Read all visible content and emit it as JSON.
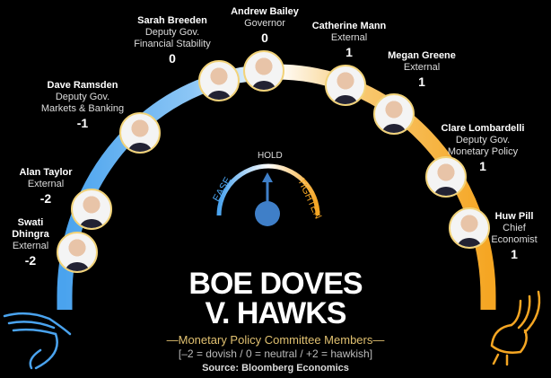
{
  "title_line1": "BOE DOVES",
  "title_line2": "V. HAWKS",
  "subtitle": "—Monetary Policy Committee Members—",
  "scale_note": "[–2 = dovish / 0 = neutral / +2 = hawkish]",
  "source": "Source: Bloomberg Economics",
  "gauge": {
    "left": "EASE",
    "center": "HOLD",
    "right": "TIGHTEN",
    "colors": {
      "ease": "#4aa3ee",
      "tighten": "#f5a623",
      "needle": "#3f7fc8"
    }
  },
  "colors": {
    "dove": "#4aa3ee",
    "hawk": "#f5a623",
    "photo_border": "#f2d37a"
  },
  "members": [
    {
      "name": "Swati",
      "name2": "Dhingra",
      "role": "External",
      "role2": "",
      "score": "-2"
    },
    {
      "name": "Alan Taylor",
      "name2": "",
      "role": "External",
      "role2": "",
      "score": "-2"
    },
    {
      "name": "Dave Ramsden",
      "name2": "",
      "role": "Deputy Gov.",
      "role2": "Markets & Banking",
      "score": "-1"
    },
    {
      "name": "Sarah Breeden",
      "name2": "",
      "role": "Deputy Gov.",
      "role2": "Financial Stability",
      "score": "0"
    },
    {
      "name": "Andrew Bailey",
      "name2": "",
      "role": "Governor",
      "role2": "",
      "score": "0"
    },
    {
      "name": "Catherine Mann",
      "name2": "",
      "role": "External",
      "role2": "",
      "score": "1"
    },
    {
      "name": "Megan Greene",
      "name2": "",
      "role": "External",
      "role2": "",
      "score": "1"
    },
    {
      "name": "Clare Lombardelli",
      "name2": "",
      "role": "Deputy Gov.",
      "role2": "Monetary Policy",
      "score": "1"
    },
    {
      "name": "Huw Pill",
      "name2": "",
      "role": "Chief",
      "role2": "Economist",
      "score": "1"
    }
  ]
}
